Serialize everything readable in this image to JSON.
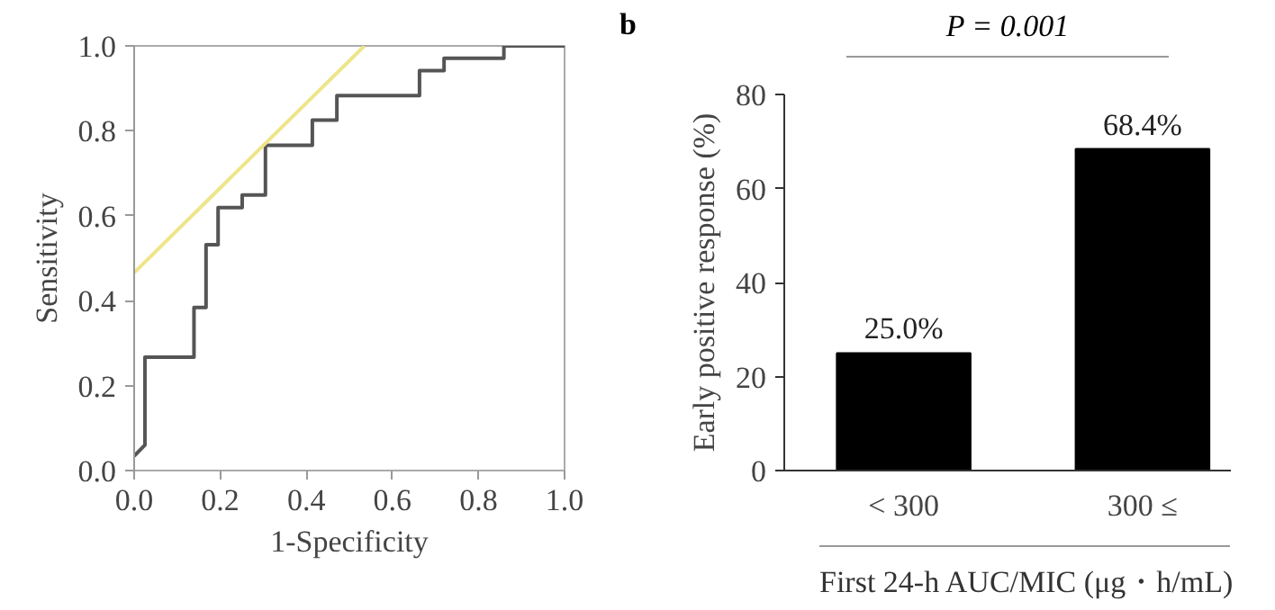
{
  "chart_data": [
    {
      "type": "line",
      "xlabel": "1-Specificity",
      "ylabel": "Sensitivity",
      "xlim": [
        0,
        1
      ],
      "ylim": [
        0,
        1
      ],
      "xticks": [
        {
          "value": 0,
          "label": "0.0"
        },
        0.2,
        0.4,
        0.6,
        0.8,
        {
          "value": 1,
          "label": "1.0"
        }
      ],
      "yticks": [
        {
          "value": 0,
          "label": "0.0"
        },
        0.2,
        0.4,
        0.6,
        0.8,
        {
          "value": 1,
          "label": "1.0"
        }
      ],
      "grid": false,
      "series": [
        {
          "type": "line",
          "color": "#555555",
          "x": [
            0,
            0.025,
            0.025,
            0.139,
            0.139,
            0.167,
            0.167,
            0.195,
            0.195,
            0.251,
            0.251,
            0.305,
            0.305,
            0.414,
            0.414,
            0.471,
            0.471,
            0.663,
            0.663,
            0.72,
            0.72,
            0.859,
            0.859,
            1.0
          ],
          "values": [
            0.034,
            0.06,
            0.267,
            0.267,
            0.384,
            0.384,
            0.532,
            0.532,
            0.619,
            0.619,
            0.649,
            0.649,
            0.766,
            0.766,
            0.825,
            0.825,
            0.883,
            0.883,
            0.942,
            0.942,
            0.971,
            0.971,
            1.0,
            1.0
          ]
        },
        {
          "type": "line",
          "color": "#eee58a",
          "x": [
            0,
            0.535
          ],
          "values": [
            0.466,
            1.0
          ]
        }
      ]
    },
    {
      "type": "bar",
      "ylabel": "Early positive response (%)",
      "xlabel": "First 24-h AUC/MIC (μg・h/mL)",
      "categories": [
        "< 300",
        "300 ≤"
      ],
      "values": [
        25.0,
        68.4
      ],
      "value_labels": [
        "25.0%",
        "68.4%"
      ],
      "color": "#000000",
      "ylim": [
        0,
        80
      ],
      "yticks": [
        0,
        20,
        40,
        60,
        80
      ],
      "grid": false,
      "annotations": [
        "b",
        "P = 0.001"
      ]
    }
  ]
}
